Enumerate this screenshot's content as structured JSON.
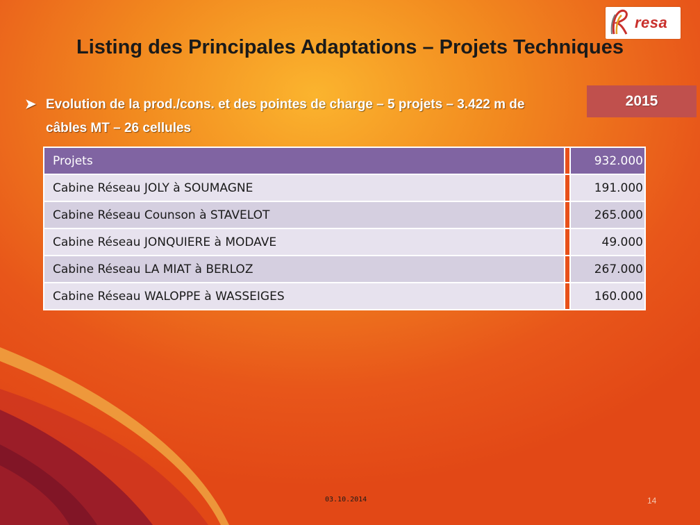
{
  "slide": {
    "title": "Listing des Principales Adaptations – Projets Techniques",
    "subtitle": {
      "bullet_icon": "arrow-bullet-icon",
      "line1": "Evolution de la prod./cons. et des pointes de charge – 5 projets – 3.422 m de",
      "line2": "câbles MT – 26 cellules"
    },
    "year": "2015"
  },
  "logo": {
    "text": "resa",
    "icon": "resa-logo-icon"
  },
  "table": {
    "header": {
      "label": "Projets",
      "value": "932.000"
    },
    "rows": [
      {
        "label": "Cabine Réseau  JOLY à SOUMAGNE",
        "value": "191.000"
      },
      {
        "label": "Cabine Réseau Counson à STAVELOT",
        "value": "265.000"
      },
      {
        "label": "Cabine Réseau JONQUIERE à MODAVE",
        "value": "49.000"
      },
      {
        "label": "Cabine Réseau LA MIAT  à BERLOZ",
        "value": "267.000"
      },
      {
        "label": "Cabine Réseau WALOPPE à WASSEIGES",
        "value": "160.000"
      }
    ]
  },
  "footer": {
    "date": "03.10.2014",
    "page": "14"
  },
  "colors": {
    "background": "#e8501a",
    "header_row": "#8064a2",
    "row_light": "#e7e2ee",
    "row_dark": "#d5cfe0",
    "year_box": "#c0504d",
    "logo_red": "#c9302c"
  }
}
